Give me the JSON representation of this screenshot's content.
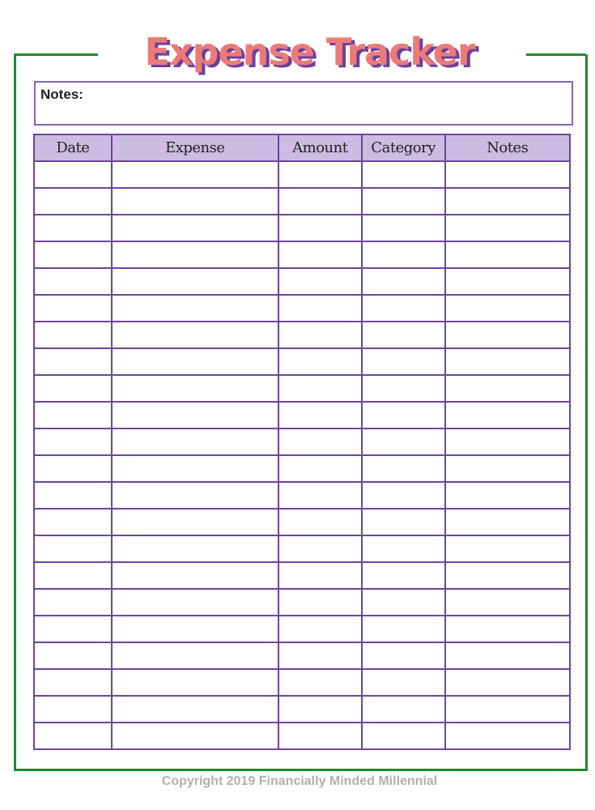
{
  "title": "Expense Tracker",
  "notes_label": "Notes:",
  "colors": {
    "frame": "#1e8a2e",
    "title": "#ec7a78",
    "title_shadow": "#6b3fa0",
    "table_border": "#6f44a0",
    "header_fill": "#cdbce2"
  },
  "table": {
    "columns": [
      "Date",
      "Expense",
      "Amount",
      "Category",
      "Notes"
    ],
    "rows": [
      [
        "",
        "",
        "",
        "",
        ""
      ],
      [
        "",
        "",
        "",
        "",
        ""
      ],
      [
        "",
        "",
        "",
        "",
        ""
      ],
      [
        "",
        "",
        "",
        "",
        ""
      ],
      [
        "",
        "",
        "",
        "",
        ""
      ],
      [
        "",
        "",
        "",
        "",
        ""
      ],
      [
        "",
        "",
        "",
        "",
        ""
      ],
      [
        "",
        "",
        "",
        "",
        ""
      ],
      [
        "",
        "",
        "",
        "",
        ""
      ],
      [
        "",
        "",
        "",
        "",
        ""
      ],
      [
        "",
        "",
        "",
        "",
        ""
      ],
      [
        "",
        "",
        "",
        "",
        ""
      ],
      [
        "",
        "",
        "",
        "",
        ""
      ],
      [
        "",
        "",
        "",
        "",
        ""
      ],
      [
        "",
        "",
        "",
        "",
        ""
      ],
      [
        "",
        "",
        "",
        "",
        ""
      ],
      [
        "",
        "",
        "",
        "",
        ""
      ],
      [
        "",
        "",
        "",
        "",
        ""
      ],
      [
        "",
        "",
        "",
        "",
        ""
      ],
      [
        "",
        "",
        "",
        "",
        ""
      ],
      [
        "",
        "",
        "",
        "",
        ""
      ],
      [
        "",
        "",
        "",
        "",
        ""
      ]
    ]
  },
  "footer": "Copyright 2019 Financially Minded Millennial"
}
